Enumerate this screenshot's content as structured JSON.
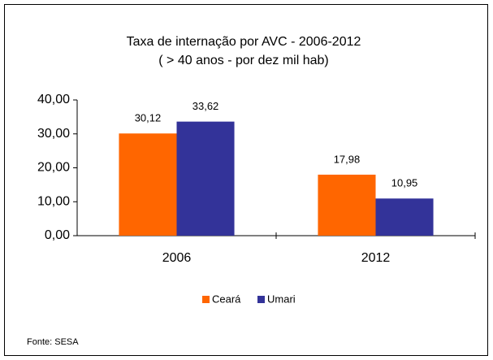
{
  "chart_data": {
    "type": "bar",
    "title": "Taxa de internação por AVC - 2006-2012",
    "subtitle": "( > 40 anos - por dez mil hab)",
    "categories": [
      "2006",
      "2012"
    ],
    "series": [
      {
        "name": "Ceará",
        "color": "#ff6600",
        "values": [
          30.12,
          17.98
        ],
        "value_labels": [
          "30,12",
          "17,98"
        ]
      },
      {
        "name": "Umari",
        "color": "#333399",
        "values": [
          33.62,
          10.95
        ],
        "value_labels": [
          "33,62",
          "10,95"
        ]
      }
    ],
    "ylim": [
      0,
      40
    ],
    "yticks": [
      {
        "value": 0,
        "label": "0,00"
      },
      {
        "value": 10,
        "label": "10,00"
      },
      {
        "value": 20,
        "label": "20,00"
      },
      {
        "value": 30,
        "label": "30,00"
      },
      {
        "value": 40,
        "label": "40,00"
      }
    ],
    "grid": false,
    "legend": "bottom",
    "source": "Fonte: SESA"
  }
}
